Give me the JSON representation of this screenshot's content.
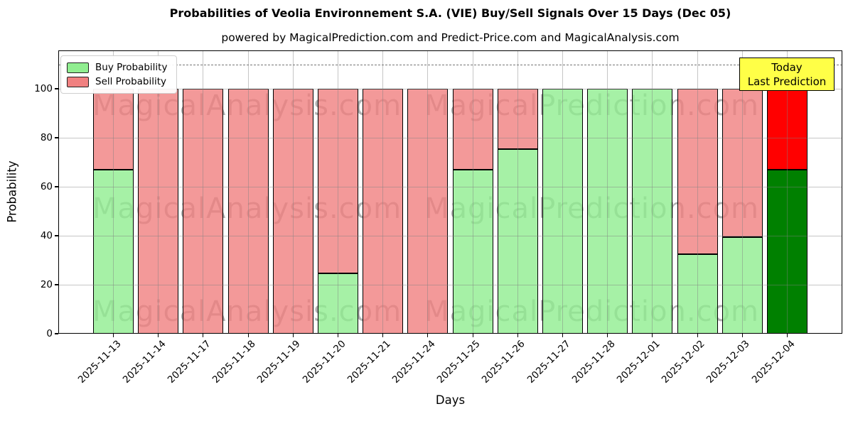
{
  "title": "Probabilities of Veolia Environnement S.A. (VIE) Buy/Sell Signals Over 15 Days (Dec 05)",
  "subtitle": "powered by MagicalPrediction.com and Predict-Price.com and MagicalAnalysis.com",
  "legend": {
    "items": [
      {
        "label": "Buy Probability",
        "color": "#90EE90"
      },
      {
        "label": "Sell Probability",
        "color": "#F08080"
      }
    ]
  },
  "annotation": {
    "line1": "Today",
    "line2": "Last Prediction",
    "bg_color": "#FFFF47"
  },
  "watermarks": {
    "left": "MagicalAnalysis.com",
    "right": "MagicalPrediction.com"
  },
  "chart_data": {
    "type": "bar",
    "stacked": true,
    "title": "Probabilities of Veolia Environnement S.A. (VIE) Buy/Sell Signals Over 15 Days (Dec 05)",
    "subtitle": "powered by MagicalPrediction.com and Predict-Price.com and MagicalAnalysis.com",
    "xlabel": "Days",
    "ylabel": "Probability",
    "ylim": [
      0,
      115.6
    ],
    "yticks": [
      0,
      20,
      40,
      60,
      80,
      100
    ],
    "dashed_guide_y": 110,
    "grid": true,
    "legend_position": "upper left",
    "categories": [
      "2025-11-13",
      "2025-11-14",
      "2025-11-17",
      "2025-11-18",
      "2025-11-19",
      "2025-11-20",
      "2025-11-21",
      "2025-11-24",
      "2025-11-25",
      "2025-11-26",
      "2025-11-27",
      "2025-11-28",
      "2025-12-01",
      "2025-12-02",
      "2025-12-03",
      "2025-12-04"
    ],
    "series": [
      {
        "name": "Buy Probability",
        "color": "#90EE90",
        "values": [
          67,
          0,
          0,
          0,
          0,
          24.5,
          0,
          0,
          67,
          75.5,
          100,
          100,
          100,
          32.5,
          39.5,
          67
        ]
      },
      {
        "name": "Sell Probability",
        "color": "#F08080",
        "values": [
          33,
          100,
          100,
          100,
          100,
          75.5,
          100,
          100,
          33,
          24.5,
          0,
          0,
          0,
          67.5,
          60.5,
          33
        ]
      }
    ],
    "today_bar": {
      "category": "2025-12-04",
      "index": 15,
      "buy_color": "#008000",
      "sell_color": "#FF0000",
      "label": "Today Last Prediction"
    }
  }
}
